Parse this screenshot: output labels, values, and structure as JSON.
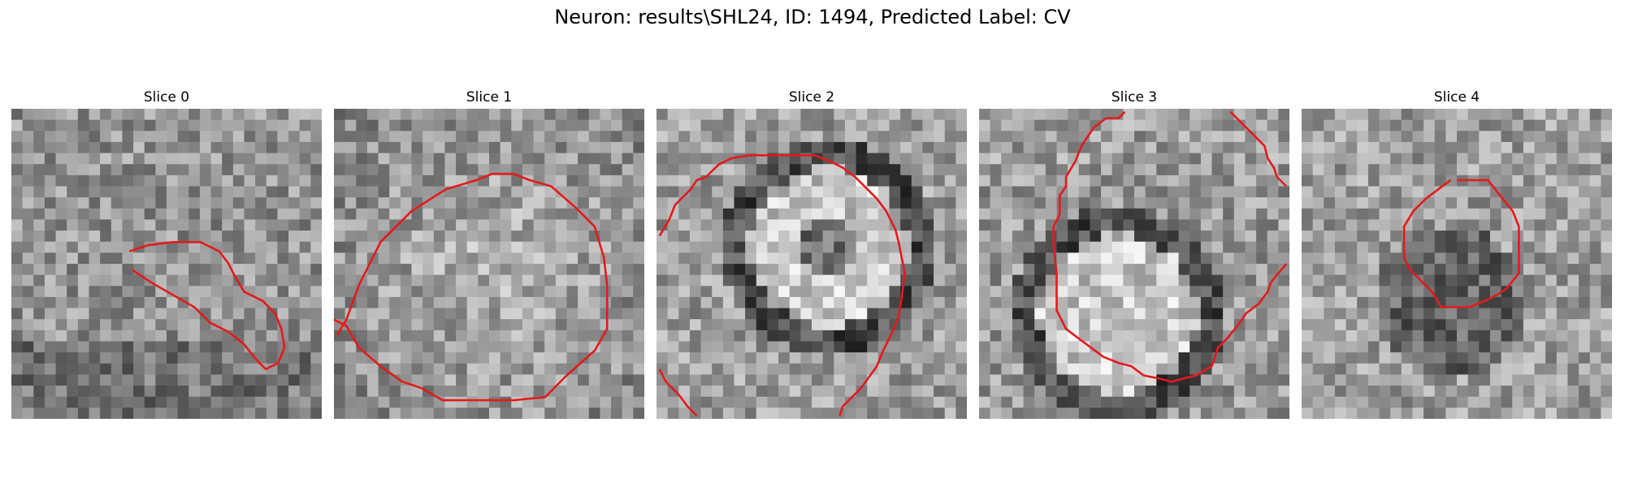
{
  "figure": {
    "title": "Neuron: results\\SHL24, ID: 1494, Predicted Label: CV"
  },
  "colors": {
    "contour": "#e41a1c",
    "background": "#ffffff"
  },
  "panels": [
    {
      "title": "Slice 0",
      "contours": [
        [
          [
            3.8,
            4.6
          ],
          [
            4.4,
            4.4
          ],
          [
            5.2,
            4.3
          ],
          [
            6.1,
            4.3
          ],
          [
            6.7,
            4.6
          ],
          [
            7.0,
            5.0
          ],
          [
            7.2,
            5.4
          ],
          [
            7.5,
            5.9
          ],
          [
            8.1,
            6.2
          ],
          [
            8.5,
            6.6
          ],
          [
            8.7,
            7.1
          ],
          [
            8.8,
            7.7
          ],
          [
            8.6,
            8.2
          ],
          [
            8.2,
            8.4
          ],
          [
            7.9,
            8.1
          ],
          [
            7.5,
            7.6
          ],
          [
            7.0,
            7.2
          ],
          [
            6.4,
            6.9
          ],
          [
            5.9,
            6.4
          ],
          [
            5.2,
            6.0
          ],
          [
            4.5,
            5.6
          ],
          [
            3.9,
            5.2
          ]
        ]
      ],
      "texture": "noisy"
    },
    {
      "title": "Slice 1",
      "contours": [
        [
          [
            0.1,
            7.3
          ],
          [
            0.4,
            6.8
          ],
          [
            0.8,
            5.7
          ],
          [
            1.5,
            4.3
          ],
          [
            2.5,
            3.3
          ],
          [
            3.6,
            2.6
          ],
          [
            4.6,
            2.3
          ],
          [
            5.1,
            2.1
          ],
          [
            5.8,
            2.1
          ],
          [
            6.3,
            2.3
          ],
          [
            7.0,
            2.5
          ],
          [
            7.8,
            3.2
          ],
          [
            8.4,
            3.8
          ],
          [
            8.7,
            4.8
          ],
          [
            8.8,
            5.7
          ],
          [
            8.8,
            7.1
          ],
          [
            8.4,
            7.8
          ],
          [
            7.5,
            8.6
          ],
          [
            6.8,
            9.3
          ],
          [
            5.8,
            9.4
          ],
          [
            4.6,
            9.4
          ],
          [
            3.5,
            9.4
          ],
          [
            2.8,
            9.0
          ],
          [
            2.2,
            8.8
          ],
          [
            1.5,
            8.3
          ],
          [
            0.8,
            7.7
          ],
          [
            0.4,
            7.0
          ],
          [
            0.0,
            6.8
          ]
        ]
      ],
      "texture": "blob"
    },
    {
      "title": "Slice 2",
      "contours": [
        [
          [
            0.1,
            4.1
          ],
          [
            0.4,
            3.6
          ],
          [
            0.6,
            3.1
          ],
          [
            1.1,
            2.6
          ],
          [
            1.3,
            2.3
          ],
          [
            1.6,
            2.2
          ],
          [
            2.0,
            1.8
          ],
          [
            2.4,
            1.6
          ],
          [
            3.0,
            1.5
          ],
          [
            4.2,
            1.5
          ],
          [
            5.1,
            1.5
          ],
          [
            5.6,
            1.7
          ],
          [
            6.0,
            1.9
          ],
          [
            6.4,
            2.2
          ],
          [
            6.8,
            2.6
          ],
          [
            7.1,
            2.9
          ],
          [
            7.4,
            3.3
          ],
          [
            7.7,
            3.9
          ],
          [
            7.8,
            4.3
          ],
          [
            8.0,
            5.3
          ],
          [
            7.9,
            6.1
          ],
          [
            7.8,
            6.7
          ],
          [
            7.6,
            7.2
          ],
          [
            7.3,
            7.8
          ],
          [
            7.1,
            8.3
          ],
          [
            6.6,
            9.0
          ],
          [
            6.0,
            9.6
          ],
          [
            5.9,
            9.9
          ]
        ],
        [
          [
            0.1,
            8.4
          ],
          [
            0.3,
            8.8
          ],
          [
            0.7,
            9.2
          ],
          [
            1.0,
            9.6
          ],
          [
            1.3,
            9.9
          ]
        ]
      ],
      "texture": "ring"
    },
    {
      "title": "Slice 3",
      "contours": [
        [
          [
            4.7,
            0.1
          ],
          [
            4.5,
            0.3
          ],
          [
            4.1,
            0.3
          ],
          [
            3.7,
            0.6
          ],
          [
            3.5,
            0.9
          ],
          [
            3.3,
            1.2
          ],
          [
            3.1,
            1.7
          ],
          [
            2.8,
            2.2
          ],
          [
            2.8,
            2.5
          ],
          [
            2.6,
            2.8
          ],
          [
            2.6,
            3.2
          ],
          [
            2.6,
            3.4
          ],
          [
            2.4,
            3.8
          ],
          [
            2.4,
            4.4
          ],
          [
            2.5,
            5.3
          ],
          [
            2.5,
            6.5
          ],
          [
            2.8,
            7.1
          ],
          [
            3.2,
            7.4
          ],
          [
            3.6,
            7.7
          ],
          [
            4.0,
            8.0
          ],
          [
            4.5,
            8.2
          ],
          [
            4.9,
            8.3
          ],
          [
            5.3,
            8.6
          ],
          [
            5.8,
            8.7
          ],
          [
            6.2,
            8.8
          ],
          [
            6.6,
            8.7
          ],
          [
            7.0,
            8.6
          ],
          [
            7.5,
            8.3
          ],
          [
            7.7,
            7.7
          ],
          [
            8.0,
            7.4
          ],
          [
            8.4,
            6.9
          ],
          [
            8.6,
            6.6
          ],
          [
            9.0,
            6.3
          ],
          [
            9.3,
            5.9
          ],
          [
            9.4,
            5.6
          ],
          [
            9.9,
            5.0
          ]
        ],
        [
          [
            8.1,
            0.1
          ],
          [
            8.4,
            0.4
          ],
          [
            8.8,
            0.8
          ],
          [
            9.2,
            1.2
          ],
          [
            9.3,
            1.6
          ],
          [
            9.5,
            1.9
          ],
          [
            9.6,
            2.2
          ],
          [
            9.9,
            2.5
          ]
        ]
      ],
      "texture": "ring-bottom"
    },
    {
      "title": "Slice 4",
      "contours": [
        [
          [
            5.0,
            2.3
          ],
          [
            5.6,
            2.3
          ],
          [
            6.0,
            2.3
          ],
          [
            6.4,
            2.8
          ],
          [
            6.8,
            3.3
          ],
          [
            7.0,
            3.8
          ],
          [
            7.0,
            4.8
          ],
          [
            7.0,
            5.3
          ],
          [
            6.6,
            5.8
          ],
          [
            6.3,
            6.0
          ],
          [
            5.9,
            6.2
          ],
          [
            5.4,
            6.4
          ],
          [
            4.9,
            6.4
          ],
          [
            4.5,
            6.4
          ],
          [
            4.2,
            5.9
          ],
          [
            3.8,
            5.5
          ],
          [
            3.5,
            5.2
          ],
          [
            3.3,
            4.8
          ],
          [
            3.3,
            4.3
          ],
          [
            3.3,
            3.8
          ],
          [
            3.6,
            3.3
          ],
          [
            4.0,
            2.9
          ],
          [
            4.4,
            2.6
          ],
          [
            4.8,
            2.3
          ]
        ]
      ],
      "texture": "dark-blob"
    }
  ]
}
